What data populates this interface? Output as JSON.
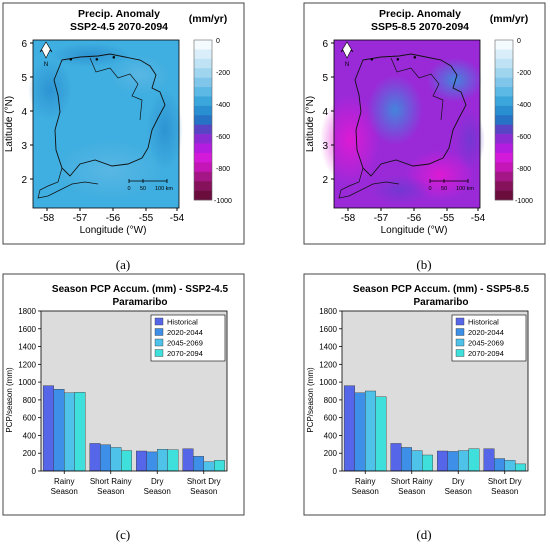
{
  "panels": {
    "a": {
      "label": "(a)"
    },
    "b": {
      "label": "(b)"
    },
    "c": {
      "label": "(c)"
    },
    "d": {
      "label": "(d)"
    }
  },
  "maps": [
    {
      "id": "map-a",
      "title_line1": "Precip. Anomaly",
      "title_line2": "SSP2-4.5 2070-2094",
      "unit": "(mm/yr)",
      "ylabel": "Latitude (°N)",
      "xlabel": "Longitude (°W)",
      "xticks": [
        "-58",
        "-57",
        "-56",
        "-55",
        "-54"
      ],
      "yticks": [
        "6",
        "5",
        "4",
        "3",
        "2"
      ],
      "scale_labels": [
        "0",
        "50",
        "100 km"
      ],
      "north": "N",
      "colorbar_ticks": [
        "0",
        "-200",
        "-400",
        "-600",
        "-800",
        "-1000"
      ],
      "dominant": "#3faee0"
    },
    {
      "id": "map-b",
      "title_line1": "Precip. Anomaly",
      "title_line2": "SSP5-8.5 2070-2094",
      "unit": "(mm/yr)",
      "ylabel": "Latitude (°N)",
      "xlabel": "Longitude (°W)",
      "xticks": [
        "-58",
        "-57",
        "-56",
        "-55",
        "-54"
      ],
      "yticks": [
        "6",
        "5",
        "4",
        "3",
        "2"
      ],
      "scale_labels": [
        "0",
        "50",
        "100 km"
      ],
      "north": "N",
      "colorbar_ticks": [
        "0",
        "-200",
        "-400",
        "-600",
        "-800",
        "-1000"
      ],
      "dominant": "#a81ad8"
    }
  ],
  "colorbar_colors": [
    "#f4fbff",
    "#daeef9",
    "#bfe3f4",
    "#9fd5ef",
    "#7fc6ea",
    "#5cb8e4",
    "#3aa6dc",
    "#2a8fd0",
    "#2672c4",
    "#5a44c6",
    "#8b2bd4",
    "#b41ce0",
    "#d21ad8",
    "#c416b6",
    "#a41686",
    "#86125c",
    "#6a0c3c"
  ],
  "chart_data": [
    {
      "type": "bar",
      "title": "Season PCP Accum. (mm) - SSP2-4.5",
      "subtitle": "Paramaribo",
      "ylabel": "PCP/season (mm)",
      "ylim": [
        0,
        1800
      ],
      "yticks": [
        0,
        200,
        400,
        600,
        800,
        1000,
        1200,
        1400,
        1600,
        1800
      ],
      "categories": [
        [
          "Rainy",
          "Season"
        ],
        [
          "Short Rainy",
          "Season"
        ],
        [
          "Dry",
          "Season"
        ],
        [
          "Short Dry",
          "Season"
        ]
      ],
      "legend_position": "top-right",
      "series": [
        {
          "name": "Historical",
          "color": "#5566e8",
          "values": [
            960,
            310,
            225,
            250
          ]
        },
        {
          "name": "2020-2044",
          "color": "#3d8fe8",
          "values": [
            920,
            295,
            215,
            165
          ]
        },
        {
          "name": "2045-2069",
          "color": "#4fc2ea",
          "values": [
            880,
            265,
            245,
            105
          ]
        },
        {
          "name": "2070-2094",
          "color": "#3fe0dc",
          "values": [
            885,
            230,
            240,
            120
          ]
        }
      ]
    },
    {
      "type": "bar",
      "title": "Season PCP Accum. (mm) - SSP5-8.5",
      "subtitle": "Paramaribo",
      "ylabel": "PCP/season (mm)",
      "ylim": [
        0,
        1800
      ],
      "yticks": [
        0,
        200,
        400,
        600,
        800,
        1000,
        1200,
        1400,
        1600,
        1800
      ],
      "categories": [
        [
          "Rainy",
          "Season"
        ],
        [
          "Short Rainy",
          "Season"
        ],
        [
          "Dry",
          "Season"
        ],
        [
          "Short Dry",
          "Season"
        ]
      ],
      "legend_position": "top-right",
      "series": [
        {
          "name": "Historical",
          "color": "#5566e8",
          "values": [
            960,
            310,
            225,
            250
          ]
        },
        {
          "name": "2020-2044",
          "color": "#3d8fe8",
          "values": [
            880,
            265,
            220,
            140
          ]
        },
        {
          "name": "2045-2069",
          "color": "#4fc2ea",
          "values": [
            900,
            230,
            230,
            120
          ]
        },
        {
          "name": "2070-2094",
          "color": "#3fe0dc",
          "values": [
            835,
            180,
            250,
            80
          ]
        }
      ]
    }
  ]
}
